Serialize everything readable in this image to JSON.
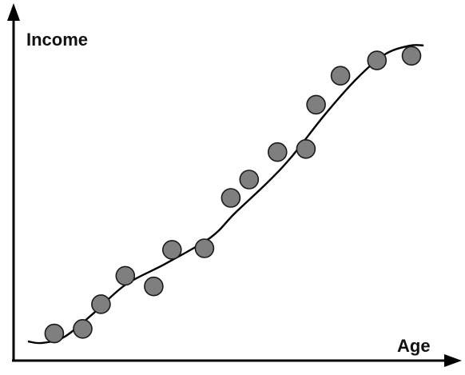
{
  "chart_data": {
    "type": "scatter",
    "xlabel": "Age",
    "ylabel": "Income",
    "grid": false,
    "legend": "none",
    "xlim": [
      0,
      10
    ],
    "ylim": [
      0,
      10
    ],
    "points": [
      {
        "x": 0.55,
        "y": 0.26
      },
      {
        "x": 1.25,
        "y": 0.41
      },
      {
        "x": 1.7,
        "y": 1.22
      },
      {
        "x": 2.3,
        "y": 2.15
      },
      {
        "x": 3.0,
        "y": 1.8
      },
      {
        "x": 3.45,
        "y": 3.0
      },
      {
        "x": 4.25,
        "y": 3.05
      },
      {
        "x": 4.9,
        "y": 4.7
      },
      {
        "x": 5.35,
        "y": 5.3
      },
      {
        "x": 6.05,
        "y": 6.2
      },
      {
        "x": 6.75,
        "y": 6.3
      },
      {
        "x": 7.0,
        "y": 7.75
      },
      {
        "x": 7.6,
        "y": 8.7
      },
      {
        "x": 8.5,
        "y": 9.2
      },
      {
        "x": 9.35,
        "y": 9.35
      }
    ],
    "trend_line": [
      {
        "x": -0.1,
        "y": 0.0
      },
      {
        "x": 0.25,
        "y": -0.05
      },
      {
        "x": 0.8,
        "y": 0.15
      },
      {
        "x": 1.5,
        "y": 0.9
      },
      {
        "x": 2.3,
        "y": 1.85
      },
      {
        "x": 3.3,
        "y": 2.55
      },
      {
        "x": 4.4,
        "y": 3.4
      },
      {
        "x": 5.0,
        "y": 4.2
      },
      {
        "x": 5.8,
        "y": 5.2
      },
      {
        "x": 6.4,
        "y": 6.05
      },
      {
        "x": 7.2,
        "y": 7.4
      },
      {
        "x": 8.0,
        "y": 8.6
      },
      {
        "x": 8.7,
        "y": 9.4
      },
      {
        "x": 9.3,
        "y": 9.68
      },
      {
        "x": 9.65,
        "y": 9.69
      }
    ],
    "colors": {
      "point_fill": "#7f7f7f",
      "point_stroke": "#1a1a1a",
      "curve": "#000000",
      "axes": "#000000"
    }
  }
}
